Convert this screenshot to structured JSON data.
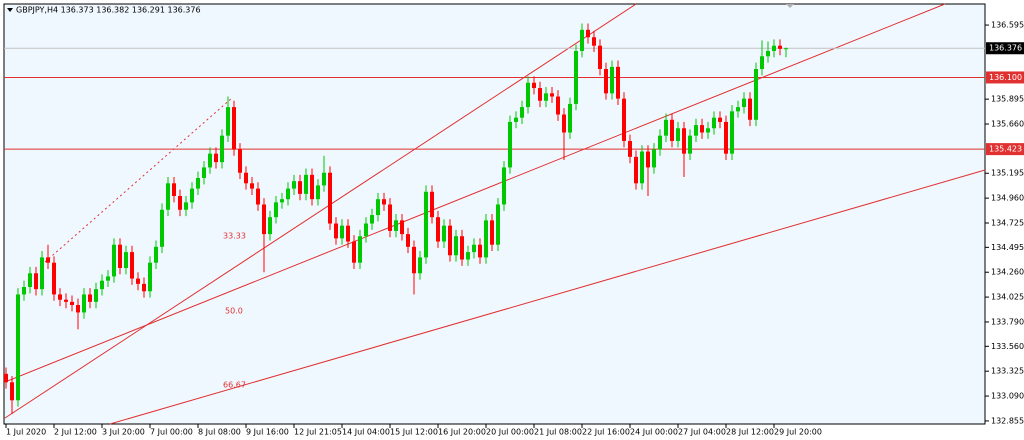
{
  "chart_data": {
    "type": "candlestick",
    "title": "GBPJPY,H4 136.373 136.382 136.291 136.376",
    "categories": [
      "1 Jul 2020",
      null,
      null,
      null,
      null,
      null,
      null,
      null,
      "2 Jul 12:00",
      null,
      null,
      null,
      null,
      null,
      null,
      null,
      "3 Jul 20:00",
      null,
      null,
      null,
      null,
      null,
      null,
      null,
      "7 Jul 00:00",
      null,
      null,
      null,
      null,
      null,
      null,
      null,
      "8 Jul 08:00",
      null,
      null,
      null,
      null,
      null,
      null,
      null,
      "9 Jul 16:00",
      null,
      null,
      null,
      null,
      null,
      null,
      null,
      "12 Jul 21:05",
      null,
      null,
      null,
      null,
      null,
      null,
      null,
      "14 Jul 04:00",
      null,
      null,
      null,
      null,
      null,
      null,
      null,
      "15 Jul 12:00",
      null,
      null,
      null,
      null,
      null,
      null,
      null,
      "16 Jul 20:00",
      null,
      null,
      null,
      null,
      null,
      null,
      null,
      "20 Jul 00:00",
      null,
      null,
      null,
      null,
      null,
      null,
      null,
      "21 Jul 08:00",
      null,
      null,
      null,
      null,
      null,
      null,
      null,
      "22 Jul 16:00",
      null,
      null,
      null,
      null,
      null,
      null,
      null,
      "24 Jul 00:00",
      null,
      null,
      null,
      null,
      null,
      null,
      null,
      "27 Jul 04:00",
      null,
      null,
      null,
      null,
      null,
      null,
      null,
      "28 Jul 12:00",
      null,
      null,
      null,
      null,
      null,
      null,
      null,
      "29 Jul 20:00",
      null,
      null
    ],
    "up_color": "#00c800",
    "down_color": "#ff0000",
    "open": [
      133.3,
      133.22,
      133.05,
      134.05,
      134.12,
      134.25,
      134.1,
      134.4,
      134.35,
      134.05,
      134.0,
      133.98,
      133.95,
      133.88,
      134.05,
      133.98,
      134.1,
      134.18,
      134.22,
      134.52,
      134.3,
      134.45,
      134.2,
      134.15,
      134.08,
      134.35,
      134.5,
      134.85,
      135.1,
      134.98,
      134.85,
      134.92,
      135.05,
      135.15,
      135.25,
      135.38,
      135.3,
      135.55,
      135.82,
      135.42,
      135.2,
      135.1,
      135.05,
      134.9,
      134.62,
      134.78,
      134.92,
      134.95,
      135.05,
      135.12,
      135.0,
      135.18,
      134.95,
      135.08,
      135.2,
      134.72,
      134.58,
      134.7,
      134.55,
      134.35,
      134.6,
      134.72,
      134.8,
      134.95,
      134.9,
      134.65,
      134.75,
      134.62,
      134.5,
      134.25,
      134.4,
      135.02,
      134.78,
      134.55,
      134.7,
      134.42,
      134.6,
      134.38,
      134.45,
      134.52,
      134.4,
      134.75,
      134.52,
      134.9,
      135.25,
      135.68,
      135.72,
      135.82,
      136.05,
      136.0,
      135.88,
      135.95,
      135.92,
      135.75,
      135.58,
      135.85,
      136.35,
      136.55,
      136.48,
      136.4,
      136.18,
      135.95,
      136.2,
      135.9,
      135.5,
      135.35,
      135.1,
      135.4,
      135.25,
      135.42,
      135.55,
      135.7,
      135.5,
      135.62,
      135.38,
      135.55,
      135.65,
      135.58,
      135.62,
      135.72,
      135.68,
      135.38,
      135.78,
      135.82,
      135.9,
      135.7,
      136.18,
      136.3,
      136.35,
      136.4,
      136.373
    ],
    "high": [
      133.36,
      133.28,
      134.11,
      134.18,
      134.31,
      134.31,
      134.46,
      134.52,
      134.41,
      134.11,
      134.06,
      134.04,
      134.01,
      134.11,
      134.11,
      134.16,
      134.24,
      134.28,
      134.58,
      134.58,
      134.51,
      134.51,
      134.26,
      134.21,
      134.41,
      134.56,
      134.91,
      135.16,
      135.16,
      135.04,
      134.98,
      135.11,
      135.21,
      135.31,
      135.44,
      135.44,
      135.61,
      135.92,
      135.88,
      135.48,
      135.26,
      135.16,
      135.11,
      134.96,
      134.84,
      134.98,
      135.01,
      135.11,
      135.18,
      135.18,
      135.24,
      135.24,
      135.14,
      135.36,
      135.26,
      134.78,
      134.76,
      134.76,
      134.61,
      134.66,
      134.78,
      134.86,
      135.01,
      135.01,
      134.96,
      134.81,
      134.81,
      134.68,
      134.56,
      134.46,
      135.08,
      135.08,
      134.84,
      134.76,
      134.76,
      134.66,
      134.66,
      134.51,
      134.58,
      134.58,
      134.81,
      134.81,
      134.96,
      135.31,
      135.74,
      135.78,
      135.88,
      136.11,
      136.11,
      136.06,
      136.01,
      136.01,
      135.98,
      135.81,
      135.91,
      136.41,
      136.61,
      136.61,
      136.54,
      136.46,
      136.24,
      136.26,
      136.26,
      135.96,
      135.56,
      135.41,
      135.46,
      135.46,
      135.48,
      135.61,
      135.76,
      135.76,
      135.68,
      135.68,
      135.61,
      135.71,
      135.71,
      135.68,
      135.78,
      135.78,
      135.74,
      135.84,
      135.88,
      135.96,
      135.96,
      136.24,
      136.45,
      136.44,
      136.46,
      136.46,
      136.382
    ],
    "low": [
      133.16,
      132.92,
      132.99,
      133.99,
      134.06,
      134.04,
      134.04,
      134.29,
      133.99,
      133.94,
      133.92,
      133.89,
      133.72,
      133.82,
      133.92,
      133.92,
      134.04,
      134.12,
      134.16,
      134.24,
      134.24,
      134.14,
      134.09,
      134.02,
      134.02,
      134.29,
      134.44,
      134.79,
      134.92,
      134.79,
      134.79,
      134.86,
      134.99,
      135.09,
      135.19,
      135.24,
      135.24,
      135.49,
      135.36,
      135.14,
      135.04,
      134.99,
      134.84,
      134.26,
      134.56,
      134.72,
      134.86,
      134.89,
      134.99,
      134.94,
      134.94,
      134.89,
      134.89,
      135.02,
      134.66,
      134.52,
      134.52,
      134.49,
      134.29,
      134.29,
      134.54,
      134.66,
      134.74,
      134.84,
      134.59,
      134.59,
      134.56,
      134.44,
      134.05,
      134.19,
      134.34,
      134.72,
      134.49,
      134.49,
      134.36,
      134.36,
      134.32,
      134.32,
      134.39,
      134.34,
      134.34,
      134.46,
      134.46,
      134.84,
      135.19,
      135.62,
      135.66,
      135.76,
      135.94,
      135.82,
      135.82,
      135.86,
      135.69,
      135.32,
      135.52,
      135.79,
      136.29,
      136.42,
      136.34,
      136.12,
      135.89,
      135.89,
      135.84,
      135.44,
      135.29,
      135.04,
      135.04,
      134.98,
      135.19,
      135.36,
      135.49,
      135.44,
      135.44,
      135.16,
      135.32,
      135.49,
      135.52,
      135.52,
      135.56,
      135.62,
      135.32,
      135.32,
      135.72,
      135.76,
      135.64,
      135.64,
      136.12,
      136.24,
      136.29,
      136.31,
      136.291
    ],
    "close": [
      133.22,
      133.05,
      134.05,
      134.12,
      134.25,
      134.1,
      134.4,
      134.35,
      134.05,
      134.0,
      133.98,
      133.95,
      133.88,
      134.05,
      133.98,
      134.1,
      134.18,
      134.22,
      134.52,
      134.3,
      134.45,
      134.2,
      134.15,
      134.08,
      134.35,
      134.5,
      134.85,
      135.1,
      134.98,
      134.85,
      134.92,
      135.05,
      135.15,
      135.25,
      135.38,
      135.3,
      135.55,
      135.82,
      135.42,
      135.2,
      135.1,
      135.05,
      134.9,
      134.62,
      134.78,
      134.92,
      134.95,
      135.05,
      135.12,
      135.0,
      135.18,
      134.95,
      135.08,
      135.2,
      134.72,
      134.58,
      134.7,
      134.55,
      134.35,
      134.6,
      134.72,
      134.8,
      134.95,
      134.9,
      134.65,
      134.75,
      134.62,
      134.5,
      134.25,
      134.4,
      135.02,
      134.78,
      134.55,
      134.7,
      134.42,
      134.6,
      134.38,
      134.45,
      134.52,
      134.4,
      134.75,
      134.52,
      134.9,
      135.25,
      135.68,
      135.72,
      135.82,
      136.05,
      136.0,
      135.88,
      135.95,
      135.92,
      135.75,
      135.58,
      135.85,
      136.35,
      136.55,
      136.48,
      136.4,
      136.18,
      135.95,
      136.2,
      135.9,
      135.5,
      135.35,
      135.1,
      135.4,
      135.25,
      135.42,
      135.55,
      135.7,
      135.5,
      135.62,
      135.38,
      135.55,
      135.65,
      135.58,
      135.62,
      135.72,
      135.68,
      135.38,
      135.78,
      135.82,
      135.9,
      135.7,
      136.18,
      136.3,
      136.35,
      136.4,
      136.37,
      136.376
    ],
    "ylim": [
      132.826,
      136.794
    ],
    "yticks": [
      {
        "value": 136.595,
        "label": "136.595"
      },
      {
        "value": 135.895,
        "label": "135.895"
      },
      {
        "value": 135.66,
        "label": "135.660"
      },
      {
        "value": 135.195,
        "label": "135.195"
      },
      {
        "value": 134.96,
        "label": "134.960"
      },
      {
        "value": 134.725,
        "label": "134.725"
      },
      {
        "value": 134.495,
        "label": "134.495"
      },
      {
        "value": 134.26,
        "label": "134.260"
      },
      {
        "value": 134.025,
        "label": "134.025"
      },
      {
        "value": 133.79,
        "label": "133.790"
      },
      {
        "value": 133.56,
        "label": "133.560"
      },
      {
        "value": 133.325,
        "label": "133.325"
      },
      {
        "value": 133.09,
        "label": "133.090"
      },
      {
        "value": 132.855,
        "label": "132.855"
      }
    ],
    "price_line": {
      "value": 136.376,
      "label": "136.376",
      "color": "#c0c0c0",
      "label_color": "#000000"
    },
    "levels": [
      {
        "value": 136.1,
        "label": "136.100",
        "color": "#e03030"
      },
      {
        "value": 135.423,
        "label": "135.423",
        "color": "#e03030"
      }
    ],
    "fib_labels": [
      "33.33",
      "50.0",
      "66.67"
    ]
  }
}
